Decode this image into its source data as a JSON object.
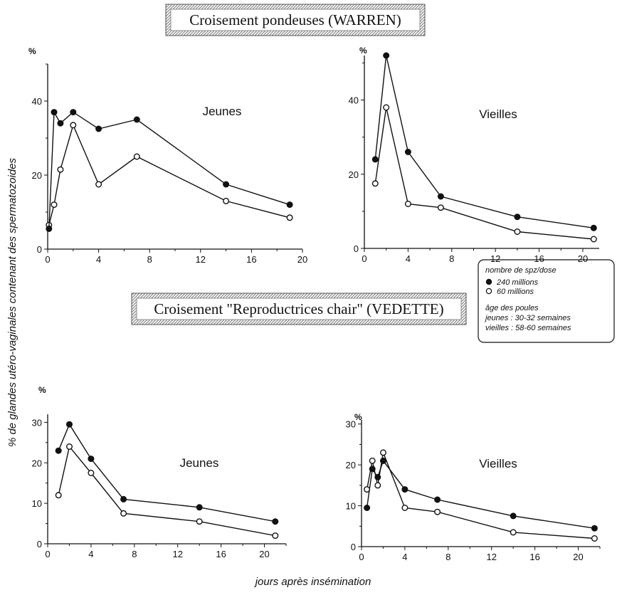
{
  "section_titles": {
    "top": "Croisement pondeuses  (WARREN)",
    "bottom": "Croisement \"Reproductrices chair\" (VEDETTE)"
  },
  "y_axis_label": "% de glandes utéro-vaginales contenant des spermatozoides",
  "x_axis_label": "jours après insémination",
  "legend": {
    "dose_title": "nombre de spz/dose",
    "filled_label": "240 millions",
    "open_label": "60 millions",
    "age_title": "âge des poules",
    "age_young": "jeunes : 30-32 semaines",
    "age_old": "vieilles : 58-60 semaines"
  },
  "colors": {
    "ink": "#111111",
    "hatch": "#8a8a8a",
    "background": "#ffffff"
  },
  "chart_data": [
    {
      "type": "line",
      "title": "Jeunes",
      "section": "Croisement pondeuses  (WARREN)",
      "unit": "%",
      "xlim": [
        0,
        20
      ],
      "ylim": [
        0,
        50
      ],
      "xticks": [
        0,
        4,
        8,
        12,
        16,
        20
      ],
      "yticks": [
        0,
        20,
        40
      ],
      "series": [
        {
          "name": "240 millions",
          "marker": "filled",
          "x": [
            0.1,
            0.5,
            1,
            2,
            4,
            7,
            14,
            19
          ],
          "y": [
            5.5,
            37,
            34,
            37,
            32.5,
            35,
            17.5,
            12
          ]
        },
        {
          "name": "60 millions",
          "marker": "open",
          "x": [
            0.1,
            0.5,
            1,
            2,
            4,
            7,
            14,
            19
          ],
          "y": [
            6.5,
            12,
            21.5,
            33.5,
            17.5,
            25,
            13,
            8.5
          ]
        }
      ]
    },
    {
      "type": "line",
      "title": "Vieilles",
      "section": "Croisement pondeuses  (WARREN)",
      "unit": "%",
      "xlim": [
        0,
        21.5
      ],
      "ylim": [
        0,
        52
      ],
      "xticks": [
        0,
        4,
        8,
        12,
        16,
        20
      ],
      "yticks": [
        0,
        20,
        40
      ],
      "series": [
        {
          "name": "240 millions",
          "marker": "filled",
          "x": [
            1,
            2,
            4,
            7,
            14,
            21
          ],
          "y": [
            24,
            52,
            26,
            14,
            8.5,
            5.5
          ]
        },
        {
          "name": "60 millions",
          "marker": "open",
          "x": [
            1,
            2,
            4,
            7,
            14,
            21
          ],
          "y": [
            17.5,
            38,
            12,
            11,
            4.5,
            2.5
          ]
        }
      ]
    },
    {
      "type": "line",
      "title": "Jeunes",
      "section": "Croisement \"Reproductrices chair\" (VEDETTE)",
      "unit": "%",
      "xlim": [
        0,
        22
      ],
      "ylim": [
        0,
        32
      ],
      "xticks": [
        0,
        4,
        8,
        12,
        16,
        20
      ],
      "yticks": [
        0,
        10,
        20,
        30
      ],
      "series": [
        {
          "name": "240 millions",
          "marker": "filled",
          "x": [
            1,
            2,
            4,
            7,
            14,
            21
          ],
          "y": [
            23,
            29.5,
            21,
            11,
            9,
            5.5
          ]
        },
        {
          "name": "60 millions",
          "marker": "open",
          "x": [
            1,
            2,
            4,
            7,
            14,
            21
          ],
          "y": [
            12,
            24,
            17.5,
            7.5,
            5.5,
            2
          ]
        }
      ]
    },
    {
      "type": "line",
      "title": "Vieilles",
      "section": "Croisement \"Reproductrices chair\" (VEDETTE)",
      "unit": "%",
      "xlim": [
        0,
        22
      ],
      "ylim": [
        0,
        31
      ],
      "xticks": [
        0,
        4,
        8,
        12,
        16,
        20
      ],
      "yticks": [
        0,
        10,
        20,
        30
      ],
      "series": [
        {
          "name": "240 millions",
          "marker": "filled",
          "x": [
            0.5,
            1,
            1.5,
            2,
            4,
            7,
            14,
            21.5
          ],
          "y": [
            9.5,
            19,
            17,
            21,
            14,
            11.5,
            7.5,
            4.5
          ]
        },
        {
          "name": "60 millions",
          "marker": "open",
          "x": [
            0.5,
            1,
            1.5,
            2,
            4,
            7,
            14,
            21.5
          ],
          "y": [
            14,
            21,
            15,
            23,
            9.5,
            8.5,
            3.5,
            2
          ]
        }
      ]
    }
  ]
}
